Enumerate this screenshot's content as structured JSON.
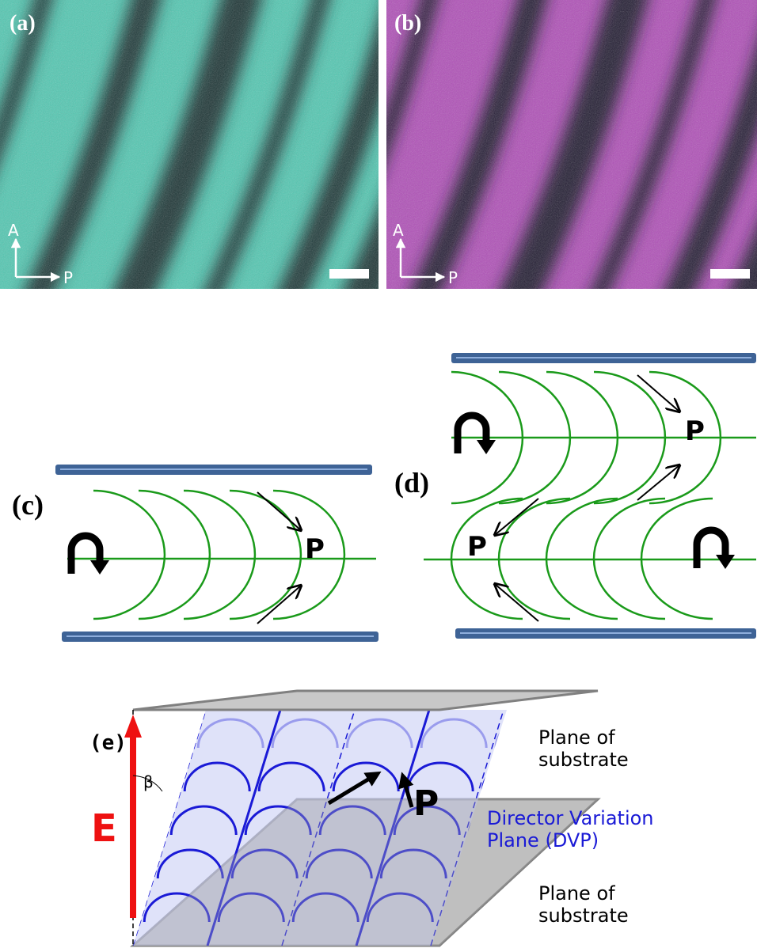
{
  "micrographs": [
    {
      "label": "(a)",
      "analyzer": "A",
      "polarizer": "P"
    },
    {
      "label": "(b)",
      "analyzer": "A",
      "polarizer": "P"
    }
  ],
  "schematic_c": {
    "label": "(c)",
    "polarization": "P"
  },
  "schematic_d": {
    "label": "(d)",
    "polarization_top": "P",
    "polarization_bottom": "P"
  },
  "schematic_e": {
    "label": "(e)",
    "top_plane": [
      "Plane of",
      "substrate"
    ],
    "dvp": [
      "Director Variation",
      "Plane (DVP)"
    ],
    "field": "E",
    "angle": "β",
    "polarization": "P",
    "bottom_plane": [
      "Plane of",
      "substrate"
    ]
  }
}
